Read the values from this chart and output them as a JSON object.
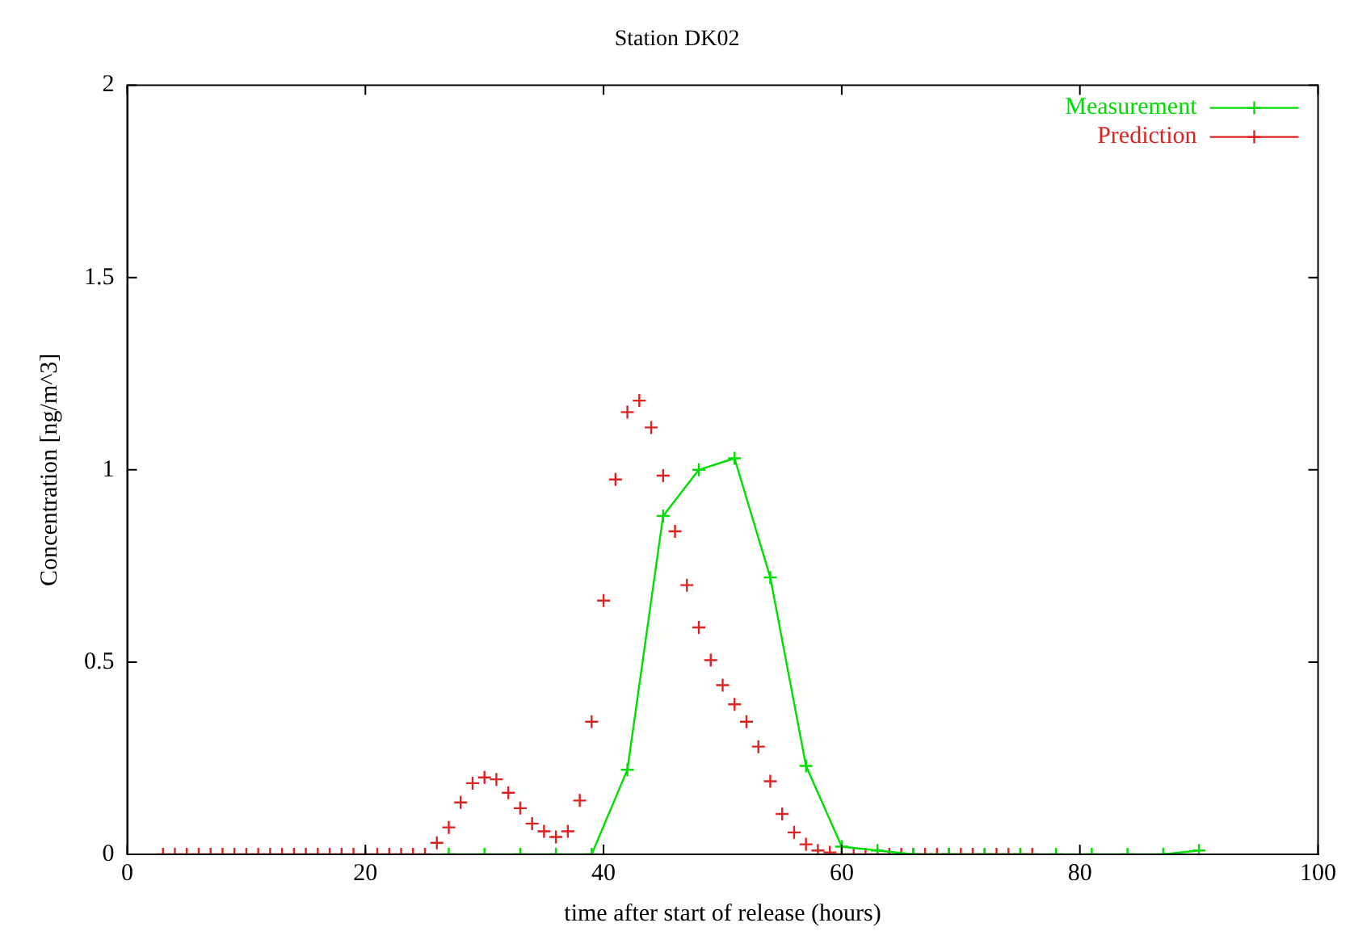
{
  "chart_data": {
    "type": "line",
    "title": "Station DK02",
    "xlabel": "time after start of release (hours)",
    "ylabel": "Concentration [ng/m^3]",
    "xlim": [
      0,
      100
    ],
    "xticks": [
      0,
      20,
      40,
      60,
      80,
      100
    ],
    "ylim": [
      0,
      2
    ],
    "yticks": [
      0,
      0.5,
      1,
      1.5,
      2
    ],
    "grid": false,
    "legend": "top right",
    "marker": "cross",
    "series": [
      {
        "name": "Measurement",
        "type": "line",
        "color": "#00dd00",
        "x": [
          27,
          30,
          33,
          36,
          39,
          42,
          45,
          48,
          51,
          54,
          57,
          60,
          63,
          66,
          69,
          72,
          75,
          78,
          81,
          84,
          87,
          90
        ],
        "values": [
          0,
          0,
          0,
          0,
          0,
          0.22,
          0.88,
          1.0,
          1.03,
          0.72,
          0.23,
          0.02,
          0.01,
          0,
          0,
          0,
          0,
          0,
          0,
          0,
          0,
          0.01
        ]
      },
      {
        "name": "Prediction",
        "type": "scatter",
        "color": "#dd2222",
        "x": [
          3,
          4,
          5,
          6,
          7,
          8,
          9,
          10,
          11,
          12,
          13,
          14,
          15,
          16,
          17,
          18,
          19,
          20,
          21,
          22,
          23,
          24,
          25,
          26,
          27,
          28,
          29,
          30,
          31,
          32,
          33,
          34,
          35,
          36,
          37,
          38,
          39,
          40,
          41,
          42,
          43,
          44,
          45,
          46,
          47,
          48,
          49,
          50,
          51,
          52,
          53,
          54,
          55,
          56,
          57,
          58,
          59,
          60,
          61,
          62,
          63,
          64,
          65,
          66,
          67,
          68,
          69,
          70,
          71,
          72,
          73,
          74,
          75,
          76
        ],
        "values": [
          0,
          0,
          0,
          0,
          0,
          0,
          0,
          0,
          0,
          0,
          0,
          0,
          0,
          0,
          0,
          0,
          0,
          0,
          0,
          0,
          0,
          0,
          0,
          0.03,
          0.07,
          0.135,
          0.185,
          0.2,
          0.195,
          0.16,
          0.12,
          0.08,
          0.06,
          0.045,
          0.06,
          0.14,
          0.345,
          0.66,
          0.975,
          1.15,
          1.18,
          1.11,
          0.985,
          0.84,
          0.7,
          0.59,
          0.505,
          0.44,
          0.39,
          0.345,
          0.28,
          0.19,
          0.105,
          0.057,
          0.026,
          0.01,
          0.005,
          0,
          0,
          0,
          0,
          0,
          0,
          0,
          0,
          0,
          0,
          0,
          0,
          0,
          0,
          0,
          0,
          0
        ]
      }
    ]
  }
}
